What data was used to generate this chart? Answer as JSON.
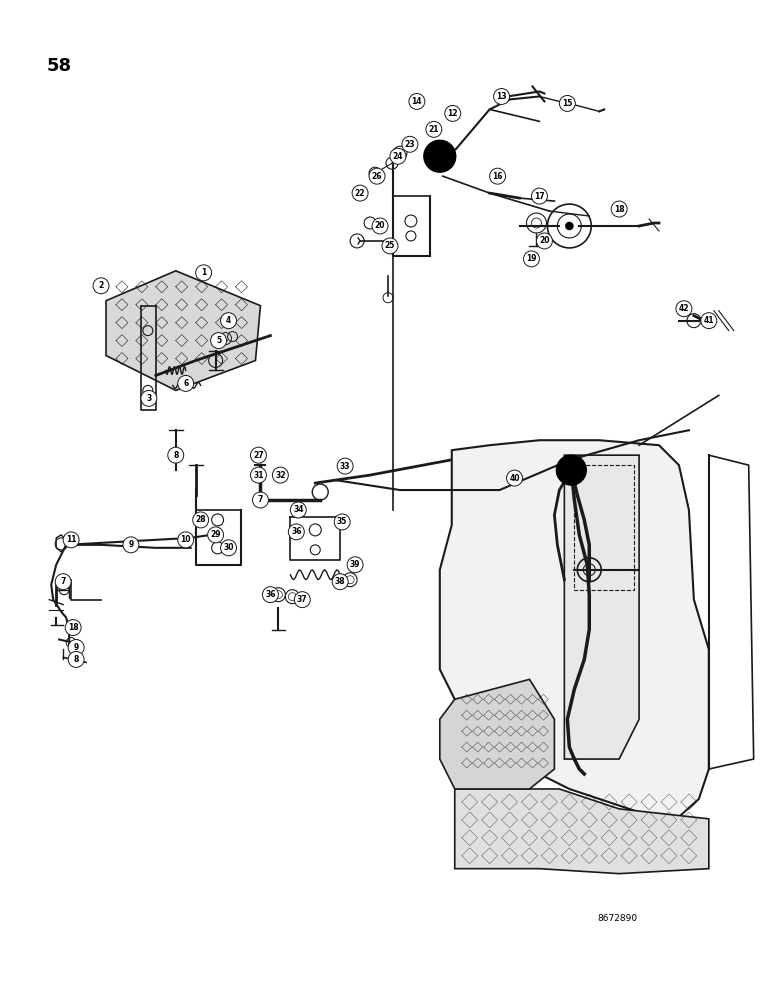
{
  "page_number": "58",
  "background_color": "#ffffff",
  "line_color": "#1a1a1a",
  "figure_code": "8672890",
  "figsize": [
    7.72,
    10.0
  ],
  "dpi": 100
}
